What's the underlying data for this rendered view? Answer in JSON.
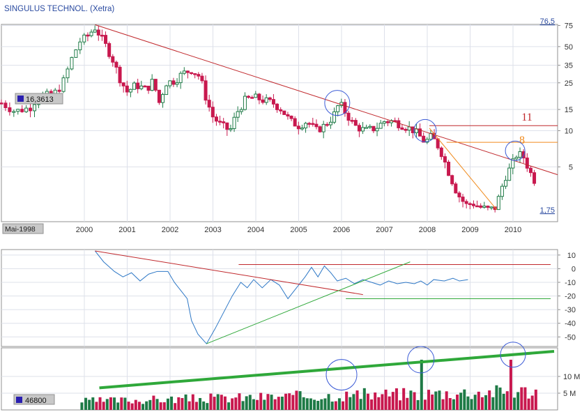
{
  "chart_data": [
    {
      "type": "candlestick",
      "title": "SINGULUS TECHNOL. (Xetra)",
      "yscale": "log",
      "ylim": [
        1.75,
        76.5
      ],
      "y_max_label": "76,5",
      "y_min_label": "1,75",
      "y_ticks": [
        75,
        50,
        35,
        25,
        15,
        10,
        5
      ],
      "x_ticks": [
        "2000",
        "2001",
        "2002",
        "2003",
        "2004",
        "2005",
        "2006",
        "2007",
        "2008",
        "2009",
        "2010"
      ],
      "start_label": "Mai-1998",
      "price_badge": "16,3613",
      "close_path": [
        [
          1998.33,
          17
        ],
        [
          1998.6,
          14.5
        ],
        [
          1998.9,
          15.5
        ],
        [
          1999.1,
          20
        ],
        [
          1999.35,
          19.5
        ],
        [
          1999.55,
          24
        ],
        [
          1999.75,
          40
        ],
        [
          1999.9,
          55
        ],
        [
          2000.05,
          60
        ],
        [
          2000.25,
          72
        ],
        [
          2000.45,
          55
        ],
        [
          2000.65,
          40
        ],
        [
          2000.85,
          26
        ],
        [
          2001.0,
          21
        ],
        [
          2001.2,
          24
        ],
        [
          2001.45,
          22
        ],
        [
          2001.6,
          26
        ],
        [
          2001.75,
          17
        ],
        [
          2001.9,
          25
        ],
        [
          2002.1,
          26
        ],
        [
          2002.3,
          30
        ],
        [
          2002.5,
          32
        ],
        [
          2002.7,
          28
        ],
        [
          2002.85,
          18
        ],
        [
          2003.0,
          13
        ],
        [
          2003.2,
          11
        ],
        [
          2003.4,
          10
        ],
        [
          2003.55,
          14
        ],
        [
          2003.75,
          18
        ],
        [
          2003.95,
          19
        ],
        [
          2004.15,
          18
        ],
        [
          2004.4,
          17
        ],
        [
          2004.6,
          15
        ],
        [
          2004.8,
          12
        ],
        [
          2005.0,
          11
        ],
        [
          2005.2,
          12
        ],
        [
          2005.4,
          10
        ],
        [
          2005.6,
          11
        ],
        [
          2005.8,
          13
        ],
        [
          2005.95,
          17
        ],
        [
          2006.1,
          14
        ],
        [
          2006.3,
          11
        ],
        [
          2006.55,
          10
        ],
        [
          2006.8,
          10.5
        ],
        [
          2007.0,
          12
        ],
        [
          2007.2,
          12
        ],
        [
          2007.45,
          11
        ],
        [
          2007.7,
          10
        ],
        [
          2007.95,
          8
        ],
        [
          2008.1,
          9
        ],
        [
          2008.3,
          7
        ],
        [
          2008.5,
          4.5
        ],
        [
          2008.7,
          3
        ],
        [
          2008.9,
          2.4
        ],
        [
          2009.05,
          2.5
        ],
        [
          2009.25,
          2.3
        ],
        [
          2009.45,
          2.2
        ],
        [
          2009.6,
          2.3
        ],
        [
          2009.8,
          4
        ],
        [
          2009.95,
          5
        ],
        [
          2010.1,
          6.5
        ],
        [
          2010.25,
          6
        ],
        [
          2010.4,
          4.5
        ],
        [
          2010.55,
          3.6
        ]
      ],
      "annotations": [
        {
          "text": "11",
          "level": 11
        },
        {
          "text": "8",
          "level": 8
        }
      ]
    },
    {
      "type": "line",
      "ylim": [
        -57,
        14
      ],
      "y_ticks": [
        10,
        0,
        -10,
        -20,
        -30,
        -40,
        -50
      ],
      "y_tick_labels": [
        "10",
        "0",
        "-10",
        "-20",
        "-30",
        "-40",
        "-50"
      ],
      "series": [
        {
          "points": [
            [
              2000.25,
              13
            ],
            [
              2000.45,
              5
            ],
            [
              2000.7,
              -2
            ],
            [
              2000.9,
              -6
            ],
            [
              2001.1,
              -3
            ],
            [
              2001.3,
              -9
            ],
            [
              2001.5,
              -4
            ],
            [
              2001.7,
              -2
            ],
            [
              2001.95,
              -2
            ],
            [
              2002.1,
              -10
            ],
            [
              2002.25,
              -16
            ],
            [
              2002.4,
              -22
            ],
            [
              2002.5,
              -38
            ],
            [
              2002.65,
              -48
            ],
            [
              2002.85,
              -55
            ],
            [
              2003.05,
              -44
            ],
            [
              2003.25,
              -32
            ],
            [
              2003.45,
              -20
            ],
            [
              2003.65,
              -10
            ],
            [
              2003.8,
              -14
            ],
            [
              2003.95,
              -8
            ],
            [
              2004.15,
              -14
            ],
            [
              2004.35,
              -8
            ],
            [
              2004.55,
              -12
            ],
            [
              2004.75,
              -22
            ],
            [
              2004.95,
              -14
            ],
            [
              2005.15,
              -6
            ],
            [
              2005.3,
              1
            ],
            [
              2005.45,
              -6
            ],
            [
              2005.6,
              2
            ],
            [
              2005.75,
              -3
            ],
            [
              2005.9,
              -9
            ],
            [
              2006.1,
              -7
            ],
            [
              2006.3,
              -11
            ],
            [
              2006.5,
              -8
            ],
            [
              2006.7,
              -10
            ],
            [
              2006.9,
              -12
            ],
            [
              2007.1,
              -9
            ],
            [
              2007.3,
              -11
            ],
            [
              2007.5,
              -10
            ],
            [
              2007.7,
              -11
            ],
            [
              2007.85,
              -9
            ],
            [
              2008.0,
              -12
            ],
            [
              2008.15,
              -8
            ],
            [
              2008.4,
              -9
            ],
            [
              2008.6,
              -7
            ],
            [
              2008.75,
              -9
            ],
            [
              2008.95,
              -8
            ]
          ]
        }
      ]
    },
    {
      "type": "bar",
      "y_ticks": [
        10,
        5
      ],
      "y_tick_labels": [
        "10 M",
        "5 M"
      ],
      "volume_badge": "46800"
    }
  ]
}
